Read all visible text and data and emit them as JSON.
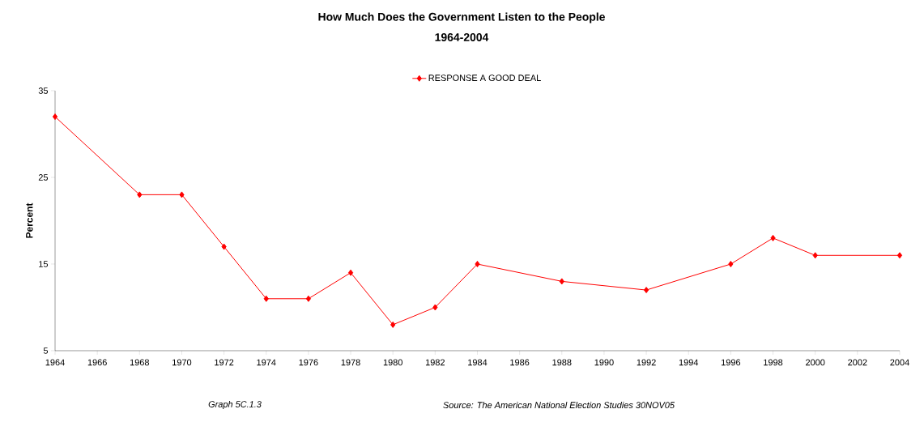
{
  "chart_data": {
    "type": "line",
    "title": "How Much Does the Government Listen to the People",
    "subtitle": "1964-2004",
    "ylabel": "Percent",
    "x": [
      1964,
      1968,
      1970,
      1972,
      1974,
      1976,
      1978,
      1980,
      1982,
      1984,
      1988,
      1992,
      1996,
      1998,
      2000,
      2004
    ],
    "series": [
      {
        "name": "RESPONSE  A GOOD DEAL",
        "color": "#ff0000",
        "values": [
          32,
          23,
          23,
          17,
          11,
          11,
          14,
          8,
          10,
          15,
          13,
          12,
          15,
          18,
          16,
          16
        ]
      }
    ],
    "xlim": [
      1964,
      2004
    ],
    "xticks": [
      1964,
      1966,
      1968,
      1970,
      1972,
      1974,
      1976,
      1978,
      1980,
      1982,
      1984,
      1986,
      1988,
      1990,
      1992,
      1994,
      1996,
      1998,
      2000,
      2002,
      2004
    ],
    "ylim": [
      5,
      35
    ],
    "yticks": [
      5,
      15,
      25,
      35
    ],
    "marker": "diamond",
    "line_style": "solid",
    "legend": "top",
    "grid": false,
    "annotations": [
      "Graph 5C.1.3",
      "Source:  The American National Election Studies   30NOV05"
    ]
  }
}
